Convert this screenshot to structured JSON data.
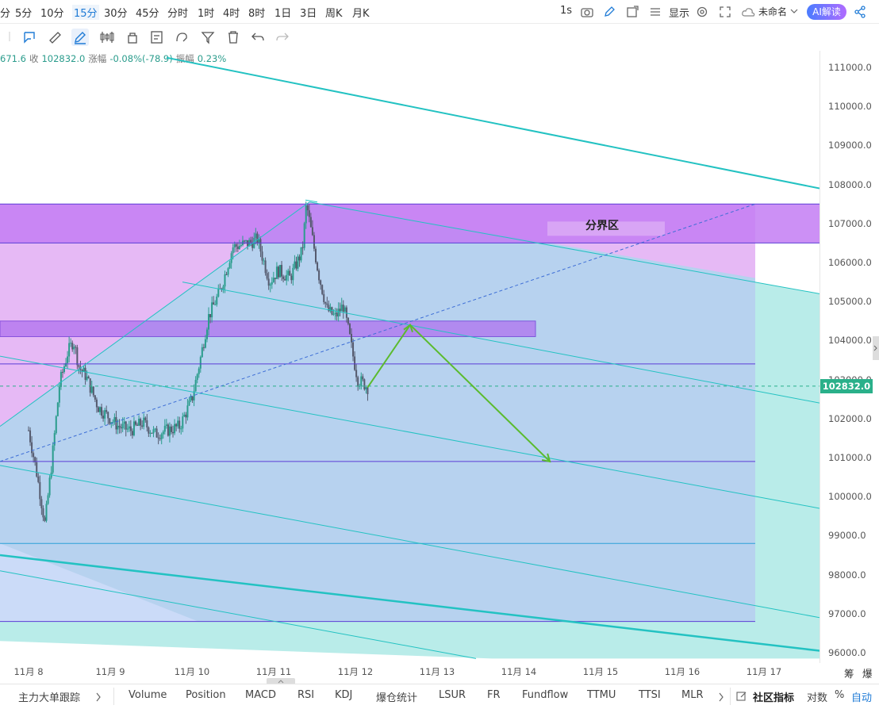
{
  "timeframes": [
    "分",
    "5分",
    "10分",
    "15分",
    "30分",
    "45分",
    "分时",
    "1时",
    "4时",
    "8时",
    "1日",
    "3日",
    "周K",
    "月K"
  ],
  "active_timeframe": "15分",
  "topbar": {
    "interval": "1s",
    "display": "显示",
    "unnamed": "未命名",
    "ai": "AI解读"
  },
  "ohlc": {
    "open_fragment": "671.6",
    "close_label": "收",
    "close": "102832.0",
    "change_label": "涨幅",
    "change": "-0.08%(-78.9)",
    "amp_label": "振幅",
    "amp": "0.23%"
  },
  "annotation": "分界区",
  "current_price": "102832.0",
  "colors": {
    "up": "#2ab08a",
    "trendline": "#23c2c2",
    "zone": "#b65cf0",
    "arrow": "#5bbb2e"
  },
  "chart_data": {
    "type": "candlestick",
    "ylim": [
      95800,
      111600
    ],
    "yticks": [
      "111000.0",
      "110000.0",
      "109000.0",
      "108000.0",
      "107000.0",
      "106000.0",
      "105000.0",
      "104000.0",
      "103000.0",
      "102000.0",
      "101000.0",
      "100000.0",
      "99000.0",
      "98000.0",
      "97000.0",
      "96000.0"
    ],
    "xticks": [
      "11月 8",
      "11月 9",
      "11月 10",
      "11月 11",
      "11月 12",
      "11月 13",
      "11月 14",
      "11月 15",
      "11月 16",
      "11月 17"
    ],
    "last_price": 102832.0,
    "price_path": [
      [
        0.0,
        101700
      ],
      [
        0.1,
        100600
      ],
      [
        0.2,
        99300
      ],
      [
        0.28,
        100800
      ],
      [
        0.38,
        102900
      ],
      [
        0.48,
        103700
      ],
      [
        0.55,
        104000
      ],
      [
        0.62,
        103300
      ],
      [
        0.7,
        103100
      ],
      [
        0.85,
        102300
      ],
      [
        1.0,
        102000
      ],
      [
        1.1,
        101800
      ],
      [
        1.25,
        101700
      ],
      [
        1.4,
        101900
      ],
      [
        1.55,
        101600
      ],
      [
        1.7,
        101700
      ],
      [
        1.85,
        101800
      ],
      [
        2.0,
        102500
      ],
      [
        2.1,
        103500
      ],
      [
        2.2,
        104600
      ],
      [
        2.35,
        105300
      ],
      [
        2.5,
        106400
      ],
      [
        2.7,
        106500
      ],
      [
        2.8,
        106600
      ],
      [
        2.95,
        105500
      ],
      [
        3.05,
        105800
      ],
      [
        3.2,
        105600
      ],
      [
        3.35,
        106300
      ],
      [
        3.4,
        107500
      ],
      [
        3.45,
        106900
      ],
      [
        3.55,
        105700
      ],
      [
        3.65,
        104800
      ],
      [
        3.75,
        104600
      ],
      [
        3.85,
        104900
      ],
      [
        3.92,
        104200
      ],
      [
        3.98,
        103500
      ],
      [
        4.03,
        103000
      ],
      [
        4.1,
        102900
      ],
      [
        4.15,
        102800
      ]
    ],
    "annotations": [
      {
        "type": "trendline",
        "from": [
          "11月 6",
          112300
        ],
        "to": [
          "11月 17",
          107800
        ]
      },
      {
        "type": "trendline",
        "from": [
          "11月 11",
          107600
        ],
        "to": [
          "11月 17",
          105200
        ]
      },
      {
        "type": "trendline",
        "from": [
          "11月 9",
          105400
        ],
        "to": [
          "11月 17",
          102400
        ]
      },
      {
        "type": "trendline",
        "from": [
          "11月 7",
          103600
        ],
        "to": [
          "11月 17",
          99700
        ]
      },
      {
        "type": "trendline",
        "from": [
          "11月 7",
          100800
        ],
        "to": [
          "11月 17",
          96900
        ]
      },
      {
        "type": "trendline",
        "from": [
          "11月 7",
          98500
        ],
        "to": [
          "11月 17",
          96100
        ]
      },
      {
        "type": "rectangle",
        "label": "分界区",
        "top": 107500,
        "bottom": 106500
      },
      {
        "type": "rectangle",
        "top": 104500,
        "bottom": 104100
      },
      {
        "type": "horizontal",
        "price": 103400
      },
      {
        "type": "horizontal",
        "price": 100900
      },
      {
        "type": "horizontal",
        "price": 98800
      },
      {
        "type": "horizontal",
        "price": 96800
      },
      {
        "type": "arrow_path",
        "points": [
          [
            "11月 12",
            102800
          ],
          [
            "11月 12",
            104400
          ],
          [
            "11月 14",
            100900
          ]
        ]
      }
    ]
  },
  "xaxis_right": [
    "筹",
    "爆"
  ],
  "bottom_indicators": [
    "主力大单跟踪",
    "Volume",
    "Position",
    "MACD",
    "RSI",
    "KDJ",
    "爆仓统计",
    "LSUR",
    "FR",
    "Fundflow",
    "TTMU",
    "TTSI",
    "MLR"
  ],
  "bottom_right": {
    "community": "社区指标",
    "log": "对数",
    "percent": "%",
    "auto": "自动"
  }
}
